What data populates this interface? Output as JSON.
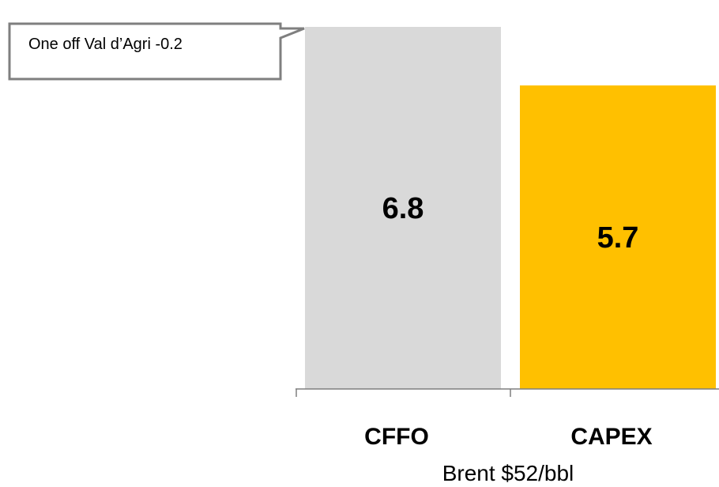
{
  "chart_data": {
    "type": "bar",
    "categories": [
      "CFFO",
      "CAPEX"
    ],
    "values": [
      6.8,
      5.7
    ],
    "value_labels": [
      "6.8",
      "5.7"
    ],
    "colors": [
      "#d9d9d9",
      "#ffc000"
    ],
    "xlabel": "Brent $52/bbl",
    "ylabel": "",
    "title": "",
    "annotations": [
      {
        "text": "One off Val d’Agri -0.2",
        "target": "CFFO"
      }
    ]
  }
}
